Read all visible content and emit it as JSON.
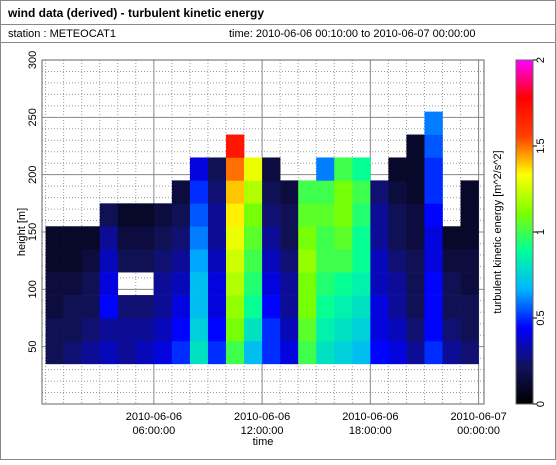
{
  "header": {
    "title": "wind data (derived) - turbulent kinetic energy",
    "station": "station : METEOCAT1",
    "time": "time: 2010-06-06 00:10:00 to 2010-06-07 00:00:00"
  },
  "chart_data": {
    "type": "heatmap",
    "xlabel": "time",
    "ylabel": "height [m]",
    "xlim": [
      -0.2,
      24.3
    ],
    "ylim": [
      0,
      300
    ],
    "xticks": [
      {
        "value": 6,
        "label": "2010-06-06\n06:00:00"
      },
      {
        "value": 12,
        "label": "2010-06-06\n12:00:00"
      },
      {
        "value": 18,
        "label": "2010-06-06\n18:00:00"
      },
      {
        "value": 24,
        "label": "2010-06-07\n00:00:00"
      }
    ],
    "yticks": [
      50,
      100,
      150,
      200,
      250,
      300
    ],
    "x_minor_ticks": [
      0,
      1,
      2,
      3,
      4,
      5,
      7,
      8,
      9,
      10,
      11,
      13,
      14,
      15,
      16,
      17,
      19,
      20,
      21,
      22,
      23
    ],
    "y_minor_ticks": [
      10,
      20,
      30,
      40,
      60,
      70,
      80,
      90,
      110,
      120,
      130,
      140,
      160,
      170,
      180,
      190,
      210,
      220,
      230,
      240,
      260,
      270,
      280,
      290
    ],
    "xbins": [
      0,
      1,
      2,
      3,
      4,
      5,
      6,
      7,
      8,
      9,
      10,
      11,
      12,
      13,
      14,
      15,
      16,
      17,
      18,
      19,
      20,
      21,
      22,
      23,
      24
    ],
    "ybins": [
      35,
      55,
      75,
      95,
      115,
      135,
      155,
      175,
      195,
      215,
      235,
      255,
      275
    ],
    "values": [
      [
        0.2,
        0.2,
        0.15,
        0.15,
        0.1,
        0.1,
        null,
        null,
        null,
        null,
        null,
        null
      ],
      [
        0.25,
        0.2,
        0.2,
        0.15,
        0.1,
        0.1,
        null,
        null,
        null,
        null,
        null,
        null
      ],
      [
        0.3,
        0.25,
        0.2,
        0.2,
        0.15,
        0.1,
        null,
        null,
        null,
        null,
        null,
        null
      ],
      [
        0.35,
        0.3,
        0.45,
        0.4,
        0.35,
        0.3,
        0.2,
        null,
        null,
        null,
        null,
        null
      ],
      [
        0.3,
        0.3,
        0.25,
        null,
        0.2,
        0.15,
        0.1,
        null,
        null,
        null,
        null,
        null
      ],
      [
        0.35,
        0.3,
        0.25,
        null,
        0.2,
        0.15,
        0.1,
        null,
        null,
        null,
        null,
        null
      ],
      [
        0.4,
        0.35,
        0.3,
        0.3,
        0.25,
        0.2,
        0.15,
        null,
        null,
        null,
        null,
        null
      ],
      [
        0.5,
        0.45,
        0.4,
        0.35,
        0.3,
        0.25,
        0.2,
        0.15,
        null,
        null,
        null,
        null
      ],
      [
        0.8,
        0.75,
        0.7,
        0.7,
        0.65,
        0.6,
        0.55,
        0.5,
        0.4,
        null,
        null,
        null
      ],
      [
        0.5,
        0.45,
        0.4,
        0.4,
        0.35,
        0.3,
        0.3,
        0.25,
        0.2,
        null,
        null,
        null
      ],
      [
        1.0,
        1.1,
        1.15,
        1.2,
        1.25,
        1.3,
        1.35,
        1.4,
        1.5,
        1.7,
        null,
        null
      ],
      [
        0.7,
        0.8,
        0.9,
        0.95,
        1.0,
        1.05,
        1.1,
        1.2,
        1.3,
        null,
        null,
        null
      ],
      [
        0.5,
        0.5,
        0.45,
        0.4,
        0.35,
        0.3,
        0.25,
        0.2,
        0.15,
        null,
        null,
        null
      ],
      [
        0.4,
        0.35,
        0.3,
        0.3,
        0.25,
        0.2,
        0.2,
        0.15,
        null,
        null,
        null,
        null
      ],
      [
        1.0,
        1.05,
        1.1,
        1.1,
        1.15,
        1.1,
        1.05,
        1.0,
        null,
        null,
        null,
        null
      ],
      [
        0.8,
        0.85,
        0.9,
        0.95,
        1.0,
        1.0,
        1.05,
        1.0,
        0.6,
        null,
        null,
        null
      ],
      [
        0.75,
        0.8,
        0.85,
        0.9,
        1.0,
        1.05,
        1.1,
        1.1,
        1.0,
        null,
        null,
        null
      ],
      [
        0.7,
        0.75,
        0.8,
        0.85,
        0.9,
        0.9,
        0.95,
        1.0,
        0.9,
        null,
        null,
        null
      ],
      [
        0.45,
        0.4,
        0.4,
        0.35,
        0.35,
        0.3,
        0.3,
        0.25,
        null,
        null,
        null,
        null
      ],
      [
        0.4,
        0.35,
        0.3,
        0.3,
        0.25,
        0.2,
        0.2,
        0.15,
        0.1,
        null,
        null,
        null
      ],
      [
        0.3,
        0.25,
        0.2,
        0.2,
        0.2,
        0.15,
        0.15,
        0.1,
        0.1,
        0.1,
        null,
        null
      ],
      [
        0.5,
        0.45,
        0.45,
        0.45,
        0.4,
        0.4,
        0.45,
        0.5,
        0.5,
        0.55,
        0.6,
        null
      ],
      [
        0.3,
        0.25,
        0.2,
        0.2,
        0.15,
        0.1,
        null,
        null,
        null,
        null,
        null,
        null
      ],
      [
        0.25,
        0.2,
        0.2,
        0.15,
        0.15,
        0.1,
        0.1,
        0.1,
        null,
        null,
        null,
        null
      ]
    ],
    "colorbar": {
      "label": "turbulent kinetic energy [m^2/s^2]",
      "lim": [
        0,
        2
      ],
      "ticks": [
        0,
        0.5,
        1,
        1.5,
        2
      ],
      "colors": [
        "#000000",
        "#12125e",
        "#0000ff",
        "#00b4ff",
        "#00ff9a",
        "#7dff00",
        "#ffff00",
        "#ff4000",
        "#ff0000",
        "#ff00ff"
      ]
    }
  }
}
